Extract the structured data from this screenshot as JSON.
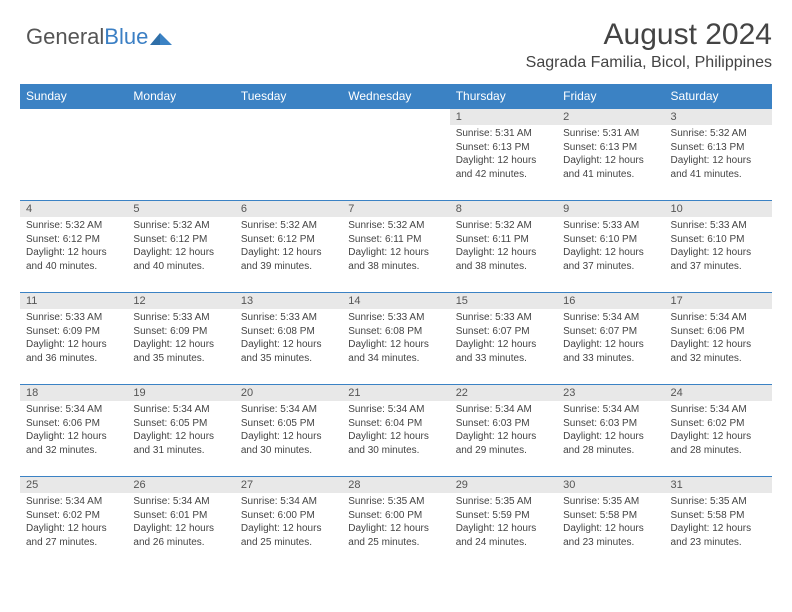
{
  "brand": {
    "part1": "General",
    "part2": "Blue"
  },
  "title": "August 2024",
  "location": "Sagrada Familia, Bicol, Philippines",
  "colors": {
    "header_bg": "#3b82c4",
    "header_text": "#ffffff",
    "daynum_bg": "#e8e8e8",
    "border": "#3b82c4",
    "text": "#444444"
  },
  "dayHeaders": [
    "Sunday",
    "Monday",
    "Tuesday",
    "Wednesday",
    "Thursday",
    "Friday",
    "Saturday"
  ],
  "weeks": [
    [
      null,
      null,
      null,
      null,
      {
        "n": "1",
        "sr": "5:31 AM",
        "ss": "6:13 PM",
        "dl": "12 hours and 42 minutes."
      },
      {
        "n": "2",
        "sr": "5:31 AM",
        "ss": "6:13 PM",
        "dl": "12 hours and 41 minutes."
      },
      {
        "n": "3",
        "sr": "5:32 AM",
        "ss": "6:13 PM",
        "dl": "12 hours and 41 minutes."
      }
    ],
    [
      {
        "n": "4",
        "sr": "5:32 AM",
        "ss": "6:12 PM",
        "dl": "12 hours and 40 minutes."
      },
      {
        "n": "5",
        "sr": "5:32 AM",
        "ss": "6:12 PM",
        "dl": "12 hours and 40 minutes."
      },
      {
        "n": "6",
        "sr": "5:32 AM",
        "ss": "6:12 PM",
        "dl": "12 hours and 39 minutes."
      },
      {
        "n": "7",
        "sr": "5:32 AM",
        "ss": "6:11 PM",
        "dl": "12 hours and 38 minutes."
      },
      {
        "n": "8",
        "sr": "5:32 AM",
        "ss": "6:11 PM",
        "dl": "12 hours and 38 minutes."
      },
      {
        "n": "9",
        "sr": "5:33 AM",
        "ss": "6:10 PM",
        "dl": "12 hours and 37 minutes."
      },
      {
        "n": "10",
        "sr": "5:33 AM",
        "ss": "6:10 PM",
        "dl": "12 hours and 37 minutes."
      }
    ],
    [
      {
        "n": "11",
        "sr": "5:33 AM",
        "ss": "6:09 PM",
        "dl": "12 hours and 36 minutes."
      },
      {
        "n": "12",
        "sr": "5:33 AM",
        "ss": "6:09 PM",
        "dl": "12 hours and 35 minutes."
      },
      {
        "n": "13",
        "sr": "5:33 AM",
        "ss": "6:08 PM",
        "dl": "12 hours and 35 minutes."
      },
      {
        "n": "14",
        "sr": "5:33 AM",
        "ss": "6:08 PM",
        "dl": "12 hours and 34 minutes."
      },
      {
        "n": "15",
        "sr": "5:33 AM",
        "ss": "6:07 PM",
        "dl": "12 hours and 33 minutes."
      },
      {
        "n": "16",
        "sr": "5:34 AM",
        "ss": "6:07 PM",
        "dl": "12 hours and 33 minutes."
      },
      {
        "n": "17",
        "sr": "5:34 AM",
        "ss": "6:06 PM",
        "dl": "12 hours and 32 minutes."
      }
    ],
    [
      {
        "n": "18",
        "sr": "5:34 AM",
        "ss": "6:06 PM",
        "dl": "12 hours and 32 minutes."
      },
      {
        "n": "19",
        "sr": "5:34 AM",
        "ss": "6:05 PM",
        "dl": "12 hours and 31 minutes."
      },
      {
        "n": "20",
        "sr": "5:34 AM",
        "ss": "6:05 PM",
        "dl": "12 hours and 30 minutes."
      },
      {
        "n": "21",
        "sr": "5:34 AM",
        "ss": "6:04 PM",
        "dl": "12 hours and 30 minutes."
      },
      {
        "n": "22",
        "sr": "5:34 AM",
        "ss": "6:03 PM",
        "dl": "12 hours and 29 minutes."
      },
      {
        "n": "23",
        "sr": "5:34 AM",
        "ss": "6:03 PM",
        "dl": "12 hours and 28 minutes."
      },
      {
        "n": "24",
        "sr": "5:34 AM",
        "ss": "6:02 PM",
        "dl": "12 hours and 28 minutes."
      }
    ],
    [
      {
        "n": "25",
        "sr": "5:34 AM",
        "ss": "6:02 PM",
        "dl": "12 hours and 27 minutes."
      },
      {
        "n": "26",
        "sr": "5:34 AM",
        "ss": "6:01 PM",
        "dl": "12 hours and 26 minutes."
      },
      {
        "n": "27",
        "sr": "5:34 AM",
        "ss": "6:00 PM",
        "dl": "12 hours and 25 minutes."
      },
      {
        "n": "28",
        "sr": "5:35 AM",
        "ss": "6:00 PM",
        "dl": "12 hours and 25 minutes."
      },
      {
        "n": "29",
        "sr": "5:35 AM",
        "ss": "5:59 PM",
        "dl": "12 hours and 24 minutes."
      },
      {
        "n": "30",
        "sr": "5:35 AM",
        "ss": "5:58 PM",
        "dl": "12 hours and 23 minutes."
      },
      {
        "n": "31",
        "sr": "5:35 AM",
        "ss": "5:58 PM",
        "dl": "12 hours and 23 minutes."
      }
    ]
  ],
  "labels": {
    "sunrise": "Sunrise:",
    "sunset": "Sunset:",
    "daylight": "Daylight:"
  }
}
